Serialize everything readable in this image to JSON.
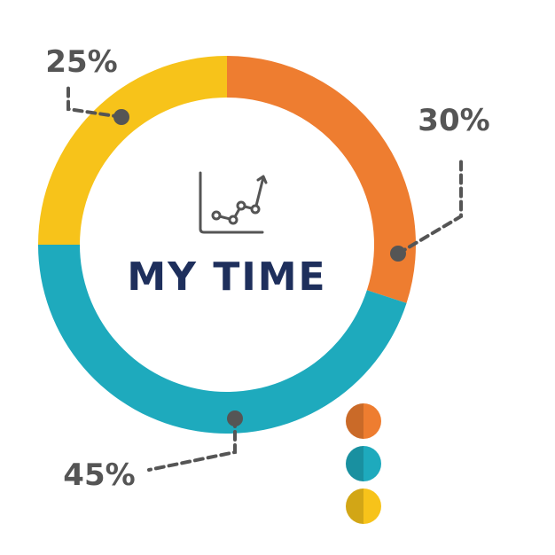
{
  "chart_data": {
    "type": "pie",
    "title": "MY TIME",
    "donut": true,
    "slices": [
      {
        "label": "30%",
        "value": 30,
        "color": "#ee7d30"
      },
      {
        "label": "45%",
        "value": 45,
        "color": "#1eaabd"
      },
      {
        "label": "25%",
        "value": 25,
        "color": "#f7c31a"
      }
    ],
    "legend": {
      "placement": "bottom-right",
      "markers": [
        "#ee7d30",
        "#1eaabd",
        "#f7c31a"
      ]
    }
  },
  "icons": {
    "center": "line-chart-icon",
    "marker": "half-shaded-dot-icon"
  }
}
